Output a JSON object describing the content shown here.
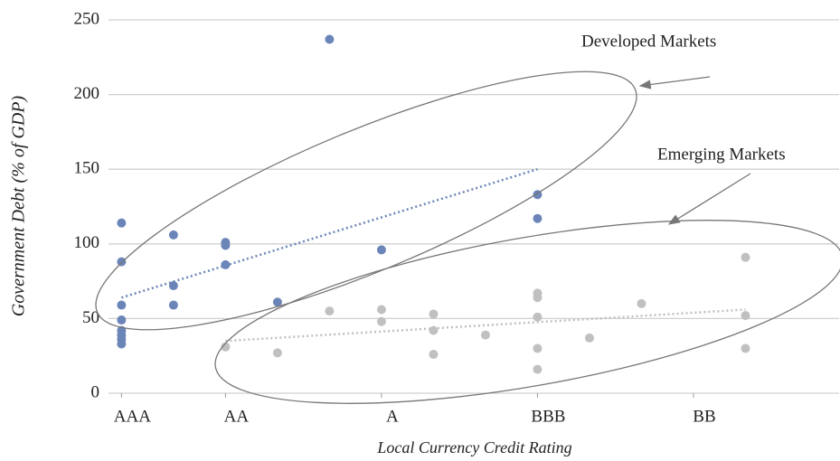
{
  "chart_data": {
    "type": "scatter",
    "x_label": "Local Currency Credit Rating",
    "y_label": "Government Debt (% of GDP)",
    "xlim": [
      0.75,
      14.8
    ],
    "xticks": [
      {
        "value": 1,
        "label": "AAA"
      },
      {
        "value": 3,
        "label": "AA"
      },
      {
        "value": 6,
        "label": "A"
      },
      {
        "value": 9,
        "label": "BBB"
      },
      {
        "value": 12,
        "label": "BB"
      }
    ],
    "ylim": [
      0,
      250
    ],
    "yticks": [
      0,
      50,
      100,
      150,
      200,
      250
    ],
    "grid": true,
    "annotations": [
      "Developed Markets",
      "Emerging Markets"
    ],
    "series": [
      {
        "name": "Developed Markets",
        "color": "#6b85b8",
        "x": [
          1,
          1,
          1,
          1,
          1,
          1,
          1,
          1,
          2,
          2,
          2,
          3,
          3,
          3,
          4,
          5,
          6,
          9,
          9
        ],
        "values": [
          114,
          88,
          59,
          49,
          42,
          39,
          36,
          33,
          106,
          72,
          59,
          101,
          99,
          86,
          61,
          237,
          96,
          133,
          117
        ],
        "trend_x": [
          1,
          9
        ],
        "trend_y": [
          64,
          150
        ]
      },
      {
        "name": "Emerging Markets",
        "color": "#c0c0c0",
        "x": [
          3,
          4,
          5,
          6,
          6,
          7,
          7,
          7,
          8,
          9,
          9,
          9,
          9,
          9,
          10,
          11,
          13,
          13,
          13
        ],
        "values": [
          31,
          27,
          55,
          56,
          48,
          53,
          42,
          26,
          39,
          67,
          64,
          51,
          30,
          16,
          37,
          60,
          91,
          52,
          30
        ],
        "trend_x": [
          3,
          13
        ],
        "trend_y": [
          35,
          56
        ]
      }
    ]
  }
}
